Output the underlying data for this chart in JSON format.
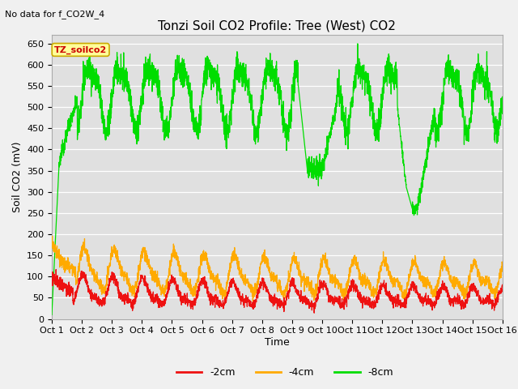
{
  "title": "Tonzi Soil CO2 Profile: Tree (West) CO2",
  "no_data_label": "No data for f_CO2W_4",
  "ylabel": "Soil CO2 (mV)",
  "xlabel": "Time",
  "legend_box_label": "TZ_soilco2",
  "ylim": [
    0,
    670
  ],
  "yticks": [
    0,
    50,
    100,
    150,
    200,
    250,
    300,
    350,
    400,
    450,
    500,
    550,
    600,
    650
  ],
  "line_colors": {
    "red": "#ee1111",
    "orange": "#ffaa00",
    "green": "#00dd00"
  },
  "legend_labels": [
    "-2cm",
    "-4cm",
    "-8cm"
  ],
  "legend_colors": [
    "#ee1111",
    "#ffaa00",
    "#00dd00"
  ],
  "outer_bg_color": "#f0f0f0",
  "plot_bg_color": "#e0e0e0",
  "grid_color": "#ffffff",
  "title_fontsize": 11,
  "axis_fontsize": 9,
  "tick_fontsize": 8,
  "n_points": 3000,
  "x_start": 1,
  "x_end": 16,
  "xtick_positions": [
    1,
    2,
    3,
    4,
    5,
    6,
    7,
    8,
    9,
    10,
    11,
    12,
    13,
    14,
    15,
    16
  ],
  "xtick_labels": [
    "Oct 1",
    "Oct 2",
    "Oct 3",
    "Oct 4",
    "Oct 5",
    "Oct 6",
    "Oct 7",
    "Oct 8",
    "Oct 9",
    "Oct 10",
    "Oct 11",
    "Oct 12",
    "Oct 13",
    "Oct 14",
    "Oct 15",
    "Oct 16"
  ]
}
